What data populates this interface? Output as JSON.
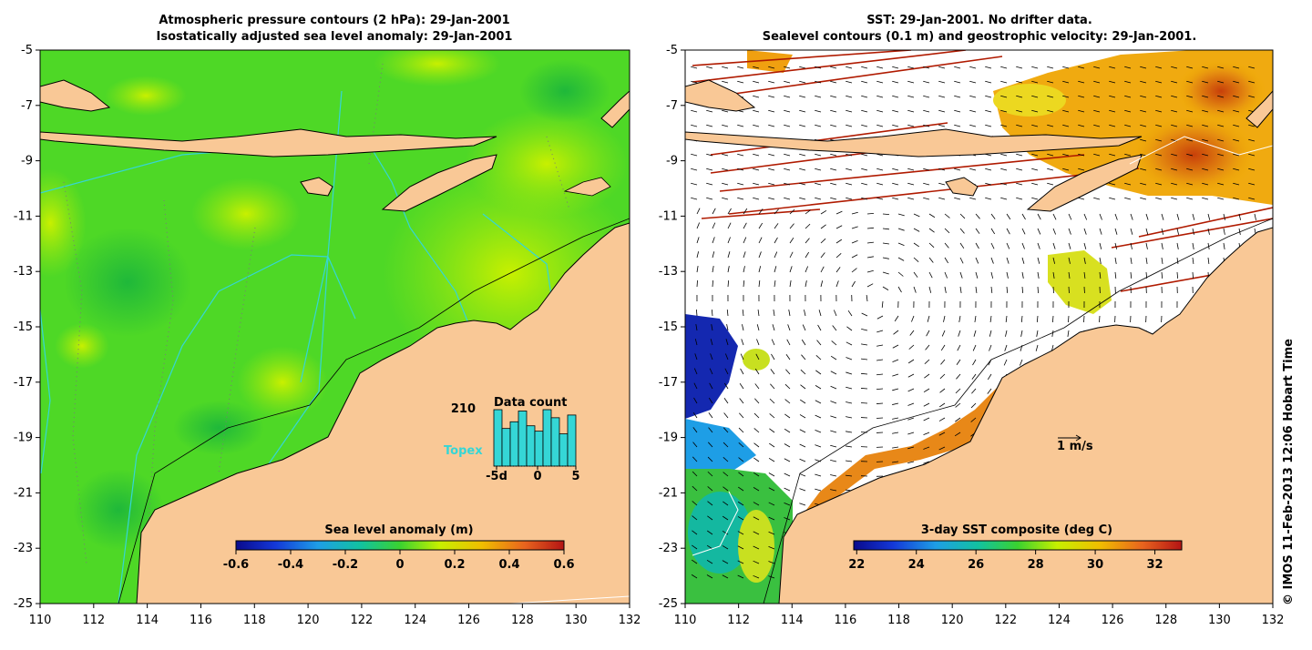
{
  "left_panel": {
    "title_line1": "Atmospheric pressure contours (2 hPa): 29-Jan-2001",
    "title_line2": "Isostatically adjusted sea level anomaly: 29-Jan-2001",
    "x_ticks": [
      "110",
      "112",
      "114",
      "116",
      "118",
      "120",
      "122",
      "124",
      "126",
      "128",
      "130",
      "132"
    ],
    "y_ticks": [
      "-5",
      "-7",
      "-9",
      "-11",
      "-13",
      "-15",
      "-17",
      "-19",
      "-21",
      "-23",
      "-25"
    ],
    "colorbar_title": "Sea level anomaly (m)",
    "colorbar_ticks": [
      "-0.6",
      "-0.4",
      "-0.2",
      "0",
      "0.2",
      "0.4",
      "0.6"
    ],
    "inset": {
      "title": "Data count",
      "max_label": "210",
      "series_label": "Topex",
      "x_ticks": [
        "-5d",
        "0",
        "5"
      ],
      "bar_values": [
        210,
        140,
        165,
        205,
        150,
        130,
        210,
        180,
        120,
        190
      ]
    }
  },
  "right_panel": {
    "title_line1": "SST: 29-Jan-2001. No drifter data.",
    "title_line2": "Sealevel contours (0.1 m) and geostrophic velocity: 29-Jan-2001.",
    "x_ticks": [
      "110",
      "112",
      "114",
      "116",
      "118",
      "120",
      "122",
      "124",
      "126",
      "128",
      "130",
      "132"
    ],
    "y_ticks": [
      "-5",
      "-7",
      "-9",
      "-11",
      "-13",
      "-15",
      "-17",
      "-19",
      "-21",
      "-23",
      "-25"
    ],
    "colorbar_title": "3-day SST composite (deg C)",
    "colorbar_ticks": [
      "22",
      "24",
      "26",
      "28",
      "30",
      "32"
    ],
    "scale_label": "1 m/s"
  },
  "copyright": "© IMOS 11-Feb-2013 12:06 Hobart Time",
  "colors": {
    "land": "#f9c896",
    "ocean_base": "#4ed826",
    "land_border": "#000000"
  }
}
